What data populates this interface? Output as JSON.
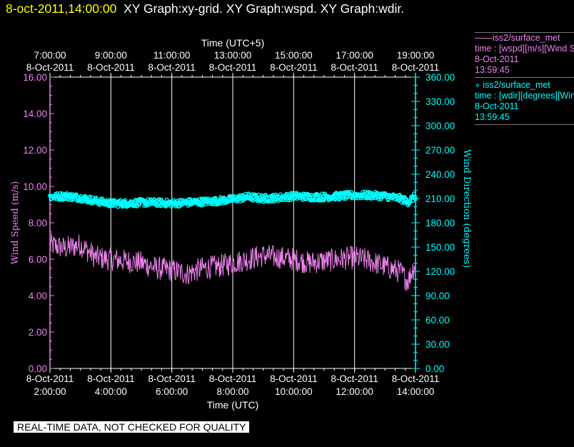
{
  "header": {
    "timestamp": "8-oct-2011,14:00:00",
    "titles": "XY Graph:xy-grid.  XY Graph:wspd.  XY Graph:wdir."
  },
  "legend": {
    "entries": [
      {
        "line1": "——iss2/surface_met",
        "line2": "time : [wspd][m/s][Wind Speed]",
        "line3": "8-Oct-2011",
        "line4": "13:59:45"
      },
      {
        "line1": "∘ iss2/surface_met",
        "line2": "time : [wdir][degrees][Wind Direction]",
        "line3": "8-Oct-2011",
        "line4": "13:59:45"
      }
    ]
  },
  "quality_badge": "REAL-TIME DATA, NOT CHECKED FOR QUALITY",
  "colors": {
    "wspd": "#ee82ee",
    "wdir": "#00ffff",
    "axis_left": "#ee82ee",
    "axis_right": "#00ffff",
    "grid": "#ffffff",
    "timestamp": "#ffff00"
  },
  "chart_data": {
    "type": "line",
    "top_axis": {
      "title": "Time (UTC+5)",
      "tick_times": [
        "7:00:00",
        "9:00:00",
        "11:00:00",
        "13:00:00",
        "15:00:00",
        "17:00:00",
        "19:00:00"
      ],
      "tick_dates": [
        "8-Oct-2011",
        "8-Oct-2011",
        "8-Oct-2011",
        "8-Oct-2011",
        "8-Oct-2011",
        "8-Oct-2011",
        "8-Oct-2011"
      ]
    },
    "bottom_axis": {
      "title": "Time (UTC)",
      "tick_dates": [
        "8-Oct-2011",
        "8-Oct-2011",
        "8-Oct-2011",
        "8-Oct-2011",
        "8-Oct-2011",
        "8-Oct-2011",
        "8-Oct-2011"
      ],
      "tick_times": [
        "2:00:00",
        "4:00:00",
        "6:00:00",
        "8:00:00",
        "10:00:00",
        "12:00:00",
        "14:00:00"
      ],
      "x_range": [
        "2011-10-08 02:00:00",
        "2011-10-08 14:00:00"
      ]
    },
    "left_axis": {
      "title": "Wind Speed (m/s)",
      "ylim": [
        0,
        16
      ],
      "tick_labels": [
        "0.00",
        "2.00",
        "4.00",
        "6.00",
        "8.00",
        "10.00",
        "12.00",
        "14.00",
        "16.00"
      ]
    },
    "right_axis": {
      "title": "Wind Direction (degrees)",
      "ylim": [
        0,
        360
      ],
      "tick_labels": [
        "0.00",
        "30.00",
        "60.00",
        "90.00",
        "120.00",
        "150.00",
        "180.00",
        "210.00",
        "240.00",
        "270.00",
        "300.00",
        "330.00",
        "360.00"
      ]
    },
    "grid": "vertical",
    "series": [
      {
        "name": "iss2/surface_met wspd",
        "axis": "left",
        "style": "line",
        "x_hours_utc": [
          2,
          2.5,
          3,
          3.5,
          4,
          4.5,
          5,
          5.5,
          6,
          6.5,
          7,
          7.5,
          8,
          8.5,
          9,
          9.5,
          10,
          10.5,
          11,
          11.5,
          12,
          12.5,
          13,
          13.5,
          13.75,
          14
        ],
        "values": [
          6.8,
          6.6,
          6.8,
          6.1,
          6.0,
          5.9,
          5.8,
          5.5,
          5.4,
          5.2,
          5.5,
          5.6,
          5.8,
          6.0,
          6.2,
          6.1,
          6.0,
          5.8,
          5.9,
          6.0,
          6.1,
          5.9,
          5.6,
          5.3,
          4.8,
          5.8
        ]
      },
      {
        "name": "iss2/surface_met wdir",
        "axis": "right",
        "style": "markers",
        "x_hours_utc": [
          2,
          2.5,
          3,
          3.5,
          4,
          4.5,
          5,
          5.5,
          6,
          6.5,
          7,
          7.5,
          8,
          8.5,
          9,
          9.5,
          10,
          10.5,
          11,
          11.5,
          12,
          12.5,
          13,
          13.5,
          13.75,
          14
        ],
        "values": [
          212,
          213,
          211,
          207,
          204,
          204,
          205,
          205,
          204,
          205,
          206,
          207,
          209,
          212,
          210,
          211,
          213,
          212,
          212,
          213,
          214,
          214,
          213,
          210,
          206,
          213
        ]
      }
    ]
  }
}
